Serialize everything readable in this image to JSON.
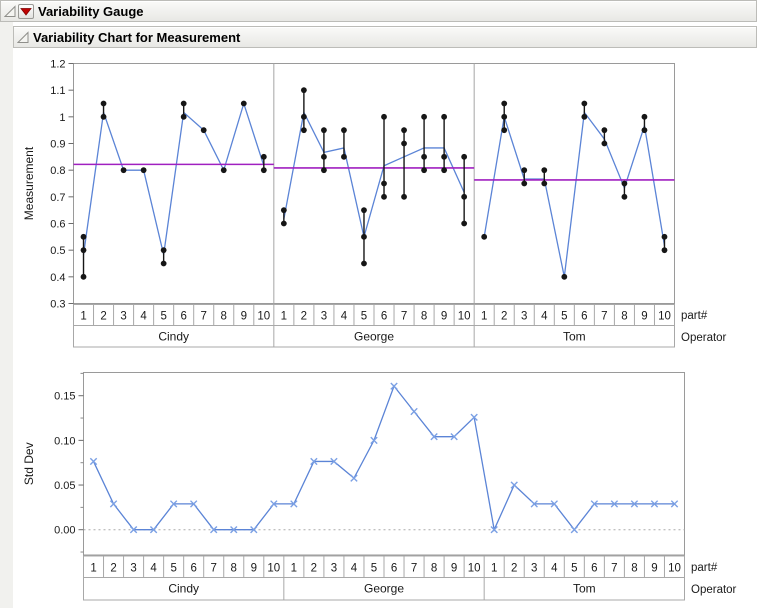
{
  "headers": [
    {
      "title": "Variability Gauge",
      "has_red_triangle_menu": true
    },
    {
      "title": "Variability Chart for Measurement",
      "has_red_triangle_menu": false
    }
  ],
  "side_labels": {
    "part_axis": "part#",
    "operator_axis": "Operator"
  },
  "colors": {
    "line_blue": "#5b84d6",
    "marker_blue": "#7ba0e4",
    "mean_purple": "#a020c0",
    "dot_black": "#161616",
    "frame_gray": "#9a9a9a",
    "table_gray": "#a8a8a8",
    "zero_dotted": "#ababab",
    "red_triangle": "#c00202"
  },
  "chart_data": [
    {
      "type": "variability",
      "ylabel": "Measurement",
      "ylim": [
        0.3,
        1.2
      ],
      "yticks": [
        "1.2",
        "1.1",
        "1",
        "0.9",
        "0.8",
        "0.7",
        "0.6",
        "0.5",
        "0.4",
        "0.3"
      ],
      "operators": [
        "Cindy",
        "George",
        "Tom"
      ],
      "parts": [
        "1",
        "2",
        "3",
        "4",
        "5",
        "6",
        "7",
        "8",
        "9",
        "10"
      ],
      "measurements": {
        "Cindy": [
          [
            0.55,
            0.5,
            0.4
          ],
          [
            1.05,
            1.0,
            1.0
          ],
          [
            0.8,
            0.8,
            0.8
          ],
          [
            0.8,
            0.8,
            0.8
          ],
          [
            0.5,
            0.5,
            0.45
          ],
          [
            1.05,
            1.0,
            1.0
          ],
          [
            0.95,
            0.95,
            0.95
          ],
          [
            0.8,
            0.8,
            0.8
          ],
          [
            1.05,
            1.05,
            1.05
          ],
          [
            0.85,
            0.8,
            0.8
          ]
        ],
        "George": [
          [
            0.65,
            0.6,
            0.6
          ],
          [
            1.1,
            1.0,
            0.95
          ],
          [
            0.95,
            0.85,
            0.8
          ],
          [
            0.95,
            0.85,
            0.85
          ],
          [
            0.65,
            0.55,
            0.45
          ],
          [
            1.0,
            0.75,
            0.7
          ],
          [
            0.95,
            0.9,
            0.7
          ],
          [
            1.0,
            0.85,
            0.8
          ],
          [
            1.0,
            0.85,
            0.8
          ],
          [
            0.85,
            0.7,
            0.6
          ]
        ],
        "Tom": [
          [
            0.55,
            0.55,
            0.55
          ],
          [
            1.05,
            1.0,
            0.95
          ],
          [
            0.8,
            0.75,
            0.75
          ],
          [
            0.8,
            0.75,
            0.75
          ],
          [
            0.4,
            0.4,
            0.4
          ],
          [
            1.05,
            1.0,
            1.0
          ],
          [
            0.95,
            0.9,
            0.9
          ],
          [
            0.75,
            0.75,
            0.7
          ],
          [
            1.0,
            0.95,
            0.95
          ],
          [
            0.55,
            0.5,
            0.5
          ]
        ]
      },
      "operator_means": {
        "Cindy": 0.8217,
        "George": 0.8083,
        "Tom": 0.7633
      }
    },
    {
      "type": "line",
      "ylabel": "Std Dev",
      "ylim": [
        0,
        0.15
      ],
      "yticks": [
        "0.15",
        "0.10",
        "0.05",
        "0.00"
      ],
      "marker": "x",
      "zero_line": "dotted",
      "operators": [
        "Cindy",
        "George",
        "Tom"
      ],
      "parts": [
        "1",
        "2",
        "3",
        "4",
        "5",
        "6",
        "7",
        "8",
        "9",
        "10"
      ],
      "std_devs": {
        "Cindy": [
          0.0764,
          0.0289,
          0,
          0,
          0.0289,
          0.0289,
          0,
          0,
          0,
          0.0289
        ],
        "George": [
          0.0289,
          0.0764,
          0.0764,
          0.0577,
          0.1,
          0.1607,
          0.1323,
          0.1041,
          0.1041,
          0.1258
        ],
        "Tom": [
          0,
          0.05,
          0.0289,
          0.0289,
          0,
          0.0289,
          0.0289,
          0.0289,
          0.0289,
          0.0289
        ]
      }
    }
  ]
}
